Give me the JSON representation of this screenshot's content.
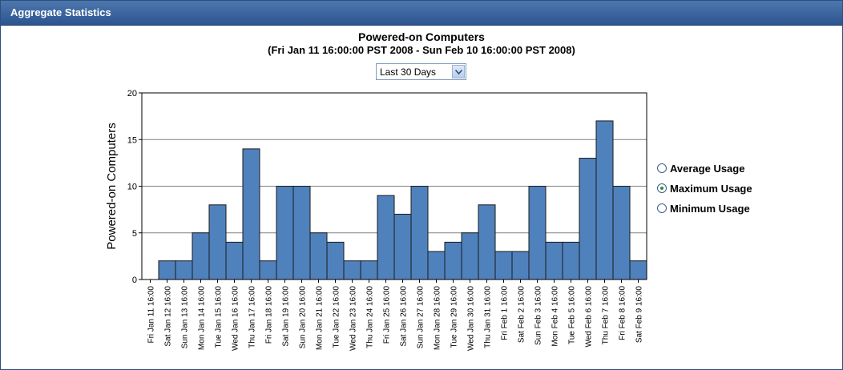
{
  "panel": {
    "title": "Aggregate Statistics"
  },
  "range_select": {
    "value": "Last 30 Days"
  },
  "legend": [
    {
      "label": "Average Usage",
      "selected": false
    },
    {
      "label": "Maximum Usage",
      "selected": true
    },
    {
      "label": "Minimum Usage",
      "selected": false
    }
  ],
  "chart_data": {
    "type": "bar",
    "title": "Powered-on Computers",
    "subtitle": "(Fri Jan 11 16:00:00 PST 2008 - Sun Feb 10 16:00:00 PST 2008)",
    "xlabel": "",
    "ylabel": "Powered-on Computers",
    "ylim": [
      0,
      20
    ],
    "yticks": [
      0,
      5,
      10,
      15,
      20
    ],
    "grid": true,
    "bar_color": "#4f81bd",
    "categories": [
      "Fri Jan 11 16:00",
      "Sat Jan 12 16:00",
      "Sun Jan 13 16:00",
      "Mon Jan 14 16:00",
      "Tue Jan 15 16:00",
      "Wed Jan 16 16:00",
      "Thu Jan 17 16:00",
      "Fri Jan 18 16:00",
      "Sat Jan 19 16:00",
      "Sun Jan 20 16:00",
      "Mon Jan 21 16:00",
      "Tue Jan 22 16:00",
      "Wed Jan 23 16:00",
      "Thu Jan 24 16:00",
      "Fri Jan 25 16:00",
      "Sat Jan 26 16:00",
      "Sun Jan 27 16:00",
      "Mon Jan 28 16:00",
      "Tue Jan 29 16:00",
      "Wed Jan 30 16:00",
      "Thu Jan 31 16:00",
      "Fri Feb 1 16:00",
      "Sat Feb 2 16:00",
      "Sun Feb 3 16:00",
      "Mon Feb 4 16:00",
      "Tue Feb 5 16:00",
      "Wed Feb 6 16:00",
      "Thu Feb 7 16:00",
      "Fri Feb 8 16:00",
      "Sat Feb 9 16:00"
    ],
    "values": [
      0,
      2,
      2,
      5,
      8,
      4,
      14,
      2,
      10,
      10,
      5,
      4,
      2,
      2,
      9,
      7,
      10,
      3,
      4,
      5,
      8,
      3,
      3,
      10,
      4,
      4,
      13,
      17,
      10,
      2
    ]
  }
}
